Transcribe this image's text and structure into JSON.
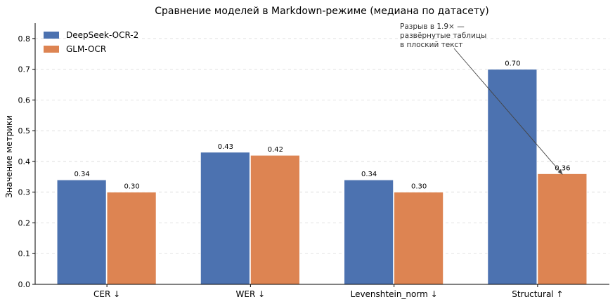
{
  "chart_data": {
    "type": "bar",
    "title": "Сравнение моделей в Markdown-режиме (медиана по датасету)",
    "xlabel": "",
    "ylabel": "Значение метрики",
    "categories": [
      "CER ↓",
      "WER ↓",
      "Levenshtein_norm ↓",
      "Structural ↑"
    ],
    "series": [
      {
        "name": "DeepSeek-OCR-2",
        "color": "#4c72b0",
        "values": [
          0.34,
          0.43,
          0.34,
          0.7
        ]
      },
      {
        "name": "GLM-OCR",
        "color": "#dd8452",
        "values": [
          0.3,
          0.42,
          0.3,
          0.36
        ]
      }
    ],
    "ylim": [
      0,
      0.85
    ],
    "yticks": [
      "0.0",
      "0.1",
      "0.2",
      "0.3",
      "0.4",
      "0.5",
      "0.6",
      "0.7",
      "0.8"
    ],
    "data_labels": [
      [
        "0.34",
        "0.43",
        "0.34",
        "0.70"
      ],
      [
        "0.30",
        "0.42",
        "0.30",
        "0.36"
      ]
    ],
    "grid": "horizontal dashed",
    "legend_position": "top-left",
    "annotation": {
      "lines": [
        "Разрыв в 1.9× —",
        "развёрнутые таблицы",
        "в плоский текст"
      ],
      "target_category": "Structural ↑",
      "target_series": "GLM-OCR"
    }
  }
}
